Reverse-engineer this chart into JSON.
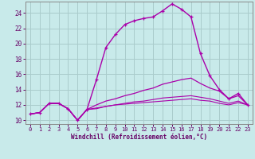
{
  "bg_color": "#c8eaea",
  "grid_color": "#aacccc",
  "line_color": "#aa00aa",
  "xlabel": "Windchill (Refroidissement éolien,°C)",
  "xlabel_color": "#660066",
  "tick_color": "#660066",
  "xlim": [
    -0.5,
    23.5
  ],
  "ylim": [
    9.5,
    25.5
  ],
  "yticks": [
    10,
    12,
    14,
    16,
    18,
    20,
    22,
    24
  ],
  "xticks": [
    0,
    1,
    2,
    3,
    4,
    5,
    6,
    7,
    8,
    9,
    10,
    11,
    12,
    13,
    14,
    15,
    16,
    17,
    18,
    19,
    20,
    21,
    22,
    23
  ],
  "line1_x": [
    0,
    1,
    2,
    3,
    4,
    5,
    6,
    7,
    8,
    9,
    10,
    11,
    12,
    13,
    14,
    15,
    16,
    17,
    18,
    19,
    20,
    21,
    22,
    23
  ],
  "line1_y": [
    10.8,
    11.0,
    12.2,
    12.2,
    11.5,
    10.0,
    11.4,
    15.3,
    19.5,
    21.2,
    22.5,
    23.0,
    23.3,
    23.5,
    24.3,
    25.2,
    24.5,
    23.5,
    18.7,
    15.8,
    14.0,
    12.8,
    13.5,
    12.0
  ],
  "line2_x": [
    0,
    1,
    2,
    3,
    4,
    5,
    6,
    7,
    8,
    9,
    10,
    11,
    12,
    13,
    14,
    15,
    16,
    17,
    18,
    19,
    20,
    21,
    22,
    23
  ],
  "line2_y": [
    10.8,
    11.0,
    12.2,
    12.2,
    11.5,
    10.0,
    11.4,
    12.0,
    12.5,
    12.8,
    13.2,
    13.5,
    13.9,
    14.2,
    14.7,
    15.0,
    15.3,
    15.5,
    14.8,
    14.2,
    13.8,
    12.8,
    13.2,
    12.0
  ],
  "line3_x": [
    0,
    1,
    2,
    3,
    4,
    5,
    6,
    7,
    8,
    9,
    10,
    11,
    12,
    13,
    14,
    15,
    16,
    17,
    18,
    19,
    20,
    21,
    22,
    23
  ],
  "line3_y": [
    10.8,
    11.0,
    12.2,
    12.2,
    11.5,
    10.0,
    11.4,
    11.5,
    11.8,
    12.0,
    12.2,
    12.4,
    12.5,
    12.7,
    12.9,
    13.0,
    13.1,
    13.2,
    13.0,
    12.8,
    12.5,
    12.2,
    12.5,
    12.0
  ],
  "line4_x": [
    0,
    1,
    2,
    3,
    4,
    5,
    6,
    7,
    8,
    9,
    10,
    11,
    12,
    13,
    14,
    15,
    16,
    17,
    18,
    19,
    20,
    21,
    22,
    23
  ],
  "line4_y": [
    10.8,
    11.0,
    12.2,
    12.2,
    11.5,
    10.0,
    11.4,
    11.6,
    11.8,
    12.0,
    12.1,
    12.2,
    12.3,
    12.4,
    12.5,
    12.6,
    12.7,
    12.8,
    12.6,
    12.5,
    12.2,
    12.0,
    12.3,
    12.0
  ]
}
